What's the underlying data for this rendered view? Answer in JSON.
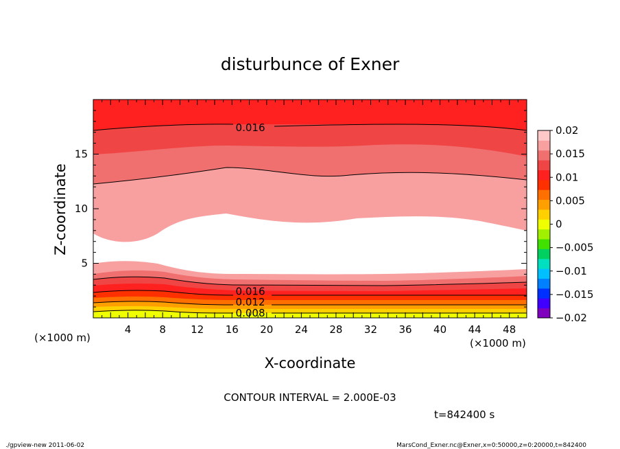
{
  "chart_data": {
    "type": "contour",
    "title": "disturbunce of Exner",
    "xlabel": "X-coordinate",
    "ylabel": "Z-coordinate",
    "x_unit_left": "(×1000 m)",
    "x_unit_right": "(×1000 m)",
    "xlim": [
      0,
      50
    ],
    "ylim": [
      0,
      20
    ],
    "x_ticks": [
      "4",
      "8",
      "12",
      "16",
      "20",
      "24",
      "28",
      "32",
      "36",
      "40",
      "44",
      "48"
    ],
    "y_ticks": [
      "5",
      "10",
      "15"
    ],
    "contour_interval_text": "CONTOUR INTERVAL = 2.000E-03",
    "time_text": "t=842400 s",
    "contour_labels": [
      {
        "text": "0.016",
        "x": 16.5,
        "z": 17.5
      },
      {
        "text": "0.016",
        "x": 16.5,
        "z": 2.5
      },
      {
        "text": "0.012",
        "x": 16.5,
        "z": 1.5
      },
      {
        "text": "0.008",
        "x": 16.5,
        "z": 0.5
      }
    ],
    "colorbar": {
      "labels": [
        "0.02",
        "0.015",
        "0.01",
        "0.005",
        "0",
        "−0.005",
        "−0.01",
        "−0.015",
        "−0.02"
      ],
      "colors": [
        "#7f00bf",
        "#4000ff",
        "#0030ff",
        "#0080ff",
        "#00c0ff",
        "#00e0c0",
        "#00d060",
        "#40e000",
        "#a0f000",
        "#f0ff00",
        "#ffd000",
        "#ffa000",
        "#ff7000",
        "#ff3000",
        "#ff2020",
        "#f04545",
        "#f07070",
        "#f8a0a0",
        "#ffc8c8"
      ]
    }
  },
  "footer": {
    "left": "./gpview-new  2011-06-02",
    "right": "MarsCond_Exner.nc@Exner,x=0:50000,z=0:20000,t=842400"
  }
}
